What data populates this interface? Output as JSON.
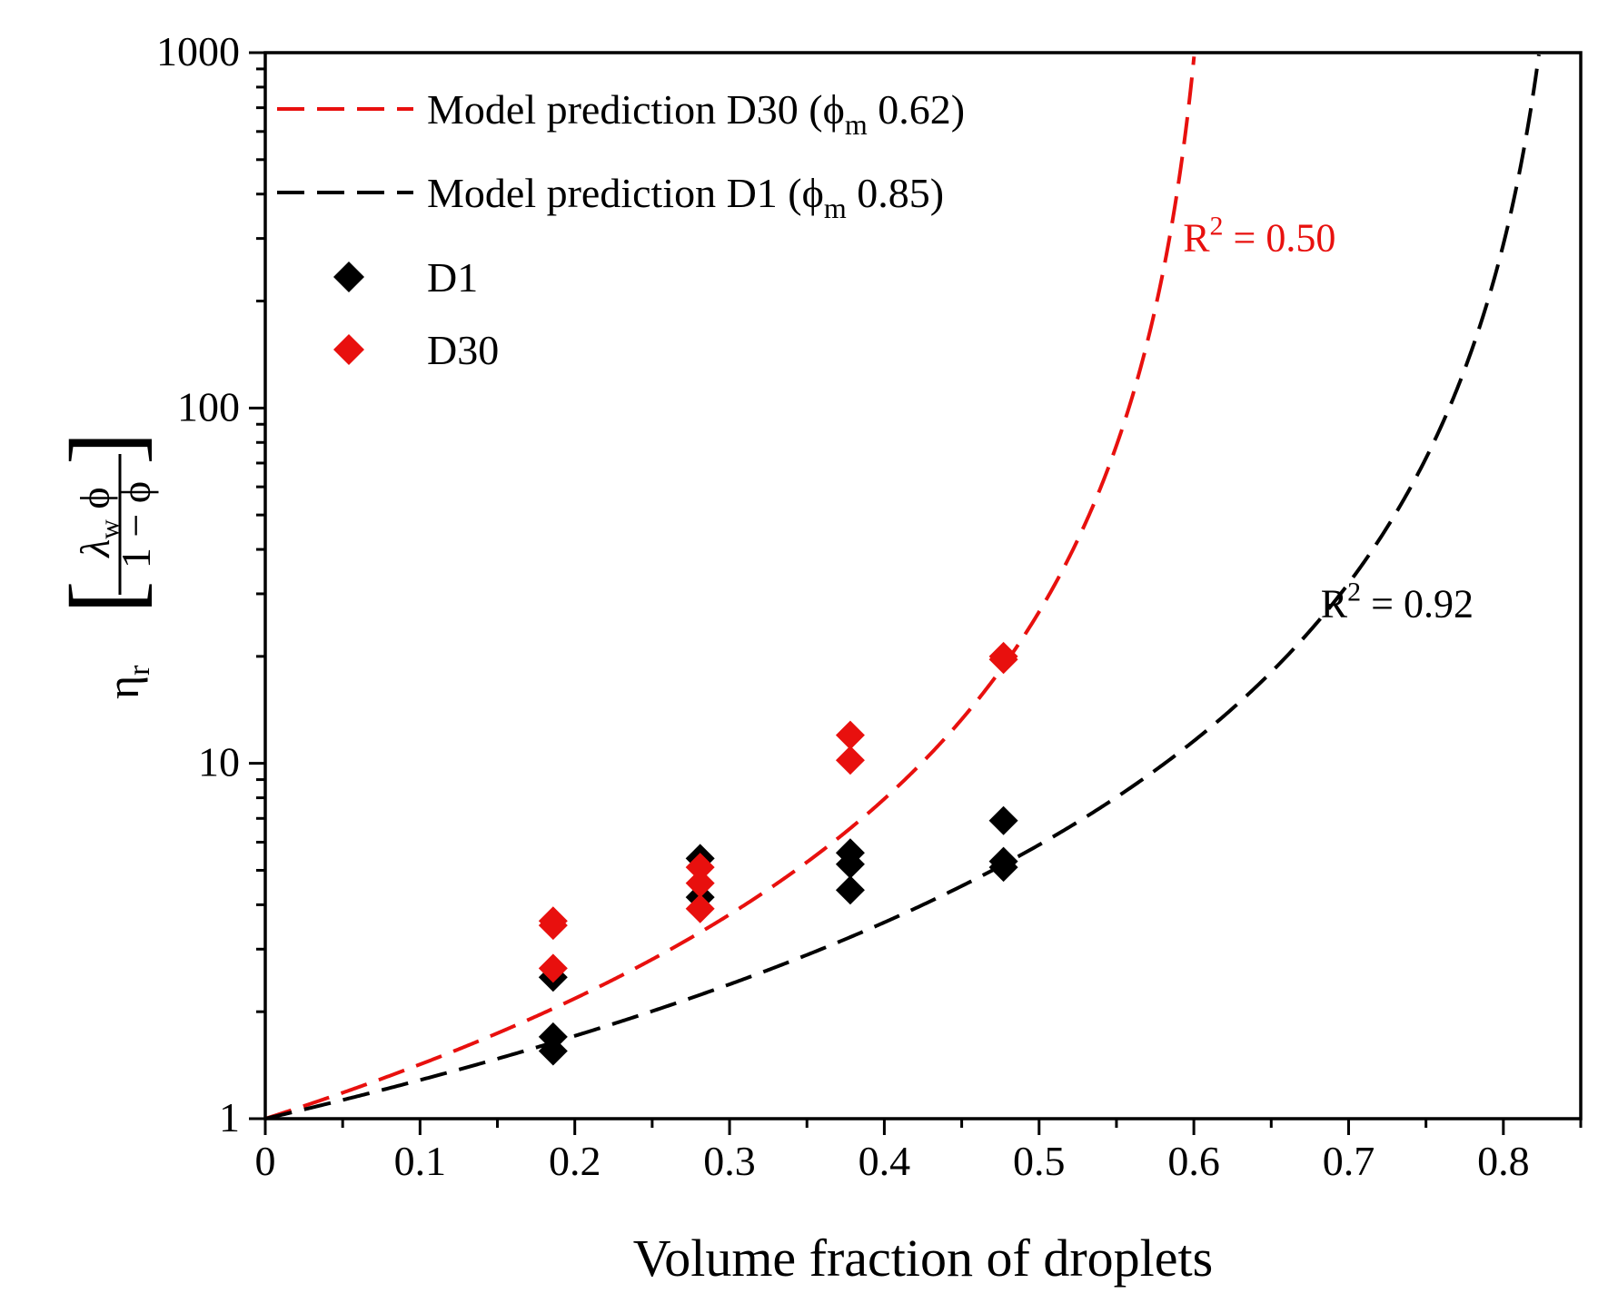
{
  "chart_data": {
    "type": "scatter",
    "title": "",
    "xlabel": "Volume fraction of droplets",
    "ylabel": {
      "prefix": "η",
      "prefix_sub": "r",
      "numerator_symbol": "λ",
      "numerator_sub": "w",
      "numerator_var": "ϕ",
      "denominator": "1 − ϕ"
    },
    "xlim": [
      0,
      0.85
    ],
    "ylim": [
      1,
      1000
    ],
    "yscale": "log",
    "xticks": [
      {
        "value": 0,
        "label": "0"
      },
      {
        "value": 0.1,
        "label": "0.1"
      },
      {
        "value": 0.2,
        "label": "0.2"
      },
      {
        "value": 0.3,
        "label": "0.3"
      },
      {
        "value": 0.4,
        "label": "0.4"
      },
      {
        "value": 0.5,
        "label": "0.5"
      },
      {
        "value": 0.6,
        "label": "0.6"
      },
      {
        "value": 0.7,
        "label": "0.7"
      },
      {
        "value": 0.8,
        "label": "0.8"
      }
    ],
    "yticks": [
      {
        "value": 1,
        "label": "1"
      },
      {
        "value": 10,
        "label": "10"
      },
      {
        "value": 100,
        "label": "100"
      },
      {
        "value": 1000,
        "label": "1000"
      }
    ],
    "legend_position": "top-left",
    "models": [
      {
        "name": "D30",
        "phi_m": 0.62,
        "color": "#e8100e",
        "legend": {
          "text": "Model prediction D30 (ϕ",
          "sub": "m",
          "tail": " 0.62)"
        },
        "r2": {
          "base": "R",
          "sup": "2",
          "rest": " = 0.50"
        },
        "r2_anchor": [
          0.593,
          300
        ]
      },
      {
        "name": "D1",
        "phi_m": 0.85,
        "color": "#000000",
        "legend": {
          "text": "Model prediction D1 (ϕ",
          "sub": "m",
          "tail": " 0.85)"
        },
        "r2": {
          "base": "R",
          "sup": "2",
          "rest": " = 0.92"
        },
        "r2_anchor": [
          0.682,
          28
        ]
      }
    ],
    "series": [
      {
        "name": "D1",
        "label": "D1",
        "color": "#000000",
        "points": [
          [
            0.186,
            2.5
          ],
          [
            0.186,
            1.7
          ],
          [
            0.186,
            1.55
          ],
          [
            0.281,
            5.4
          ],
          [
            0.281,
            4.2
          ],
          [
            0.378,
            5.6
          ],
          [
            0.378,
            5.2
          ],
          [
            0.378,
            4.4
          ],
          [
            0.477,
            6.9
          ],
          [
            0.477,
            5.3
          ],
          [
            0.477,
            5.1
          ]
        ]
      },
      {
        "name": "D30",
        "label": "D30",
        "color": "#e8100e",
        "points": [
          [
            0.186,
            3.6
          ],
          [
            0.186,
            3.5
          ],
          [
            0.186,
            2.65
          ],
          [
            0.281,
            5.1
          ],
          [
            0.281,
            4.6
          ],
          [
            0.281,
            3.9
          ],
          [
            0.378,
            12.0
          ],
          [
            0.378,
            10.2
          ],
          [
            0.477,
            20.0
          ],
          [
            0.477,
            19.6
          ]
        ]
      }
    ]
  }
}
